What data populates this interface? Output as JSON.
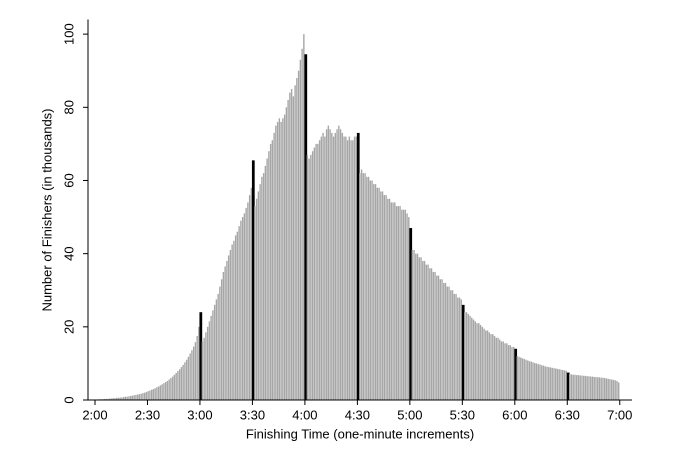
{
  "chart_data": {
    "type": "histogram",
    "xlabel": "Finishing Time (one-minute increments)",
    "ylabel": "Number of Finishers (in thousands)",
    "color": "#a6a6a6",
    "highlight_color": "#000000",
    "highlight_x": [
      180,
      210,
      240,
      270,
      300,
      330,
      360,
      390
    ],
    "xlim": [
      116,
      427
    ],
    "ylim": [
      0,
      104
    ],
    "xticks": [
      {
        "value": 120,
        "label": "2:00"
      },
      {
        "value": 150,
        "label": "2:30"
      },
      {
        "value": 180,
        "label": "3:00"
      },
      {
        "value": 210,
        "label": "3:30"
      },
      {
        "value": 240,
        "label": "4:00"
      },
      {
        "value": 270,
        "label": "4:30"
      },
      {
        "value": 300,
        "label": "5:00"
      },
      {
        "value": 330,
        "label": "5:30"
      },
      {
        "value": 360,
        "label": "6:00"
      },
      {
        "value": 390,
        "label": "6:30"
      },
      {
        "value": 420,
        "label": "7:00"
      }
    ],
    "yticks": [
      0,
      20,
      40,
      60,
      80,
      100
    ],
    "bins": [
      120,
      121,
      122,
      123,
      124,
      125,
      126,
      127,
      128,
      129,
      130,
      131,
      132,
      133,
      134,
      135,
      136,
      137,
      138,
      139,
      140,
      141,
      142,
      143,
      144,
      145,
      146,
      147,
      148,
      149,
      150,
      151,
      152,
      153,
      154,
      155,
      156,
      157,
      158,
      159,
      160,
      161,
      162,
      163,
      164,
      165,
      166,
      167,
      168,
      169,
      170,
      171,
      172,
      173,
      174,
      175,
      176,
      177,
      178,
      179,
      180,
      181,
      182,
      183,
      184,
      185,
      186,
      187,
      188,
      189,
      190,
      191,
      192,
      193,
      194,
      195,
      196,
      197,
      198,
      199,
      200,
      201,
      202,
      203,
      204,
      205,
      206,
      207,
      208,
      209,
      210,
      211,
      212,
      213,
      214,
      215,
      216,
      217,
      218,
      219,
      220,
      221,
      222,
      223,
      224,
      225,
      226,
      227,
      228,
      229,
      230,
      231,
      232,
      233,
      234,
      235,
      236,
      237,
      238,
      239,
      240,
      241,
      242,
      243,
      244,
      245,
      246,
      247,
      248,
      249,
      250,
      251,
      252,
      253,
      254,
      255,
      256,
      257,
      258,
      259,
      260,
      261,
      262,
      263,
      264,
      265,
      266,
      267,
      268,
      269,
      270,
      271,
      272,
      273,
      274,
      275,
      276,
      277,
      278,
      279,
      280,
      281,
      282,
      283,
      284,
      285,
      286,
      287,
      288,
      289,
      290,
      291,
      292,
      293,
      294,
      295,
      296,
      297,
      298,
      299,
      300,
      301,
      302,
      303,
      304,
      305,
      306,
      307,
      308,
      309,
      310,
      311,
      312,
      313,
      314,
      315,
      316,
      317,
      318,
      319,
      320,
      321,
      322,
      323,
      324,
      325,
      326,
      327,
      328,
      329,
      330,
      331,
      332,
      333,
      334,
      335,
      336,
      337,
      338,
      339,
      340,
      341,
      342,
      343,
      344,
      345,
      346,
      347,
      348,
      349,
      350,
      351,
      352,
      353,
      354,
      355,
      356,
      357,
      358,
      359,
      360,
      361,
      362,
      363,
      364,
      365,
      366,
      367,
      368,
      369,
      370,
      371,
      372,
      373,
      374,
      375,
      376,
      377,
      378,
      379,
      380,
      381,
      382,
      383,
      384,
      385,
      386,
      387,
      388,
      389,
      390,
      391,
      392,
      393,
      394,
      395,
      396,
      397,
      398,
      399,
      400,
      401,
      402,
      403,
      404,
      405,
      406,
      407,
      408,
      409,
      410,
      411,
      412,
      413,
      414,
      415,
      416,
      417,
      418,
      419,
      420
    ],
    "values": [
      0.1,
      0.1,
      0.2,
      0.2,
      0.2,
      0.3,
      0.3,
      0.3,
      0.4,
      0.4,
      0.5,
      0.5,
      0.6,
      0.6,
      0.7,
      0.7,
      0.8,
      0.9,
      0.9,
      1.0,
      1.1,
      1.2,
      1.3,
      1.4,
      1.5,
      1.6,
      1.7,
      1.9,
      2.0,
      2.2,
      2.4,
      2.6,
      2.8,
      3.0,
      3.2,
      3.5,
      3.7,
      4.0,
      4.3,
      4.6,
      4.9,
      5.2,
      5.6,
      6.0,
      6.4,
      6.9,
      7.4,
      7.9,
      8.4,
      9.0,
      9.6,
      10.3,
      11.0,
      11.8,
      12.7,
      13.6,
      14.6,
      15.8,
      17.5,
      20.0,
      24.0,
      16.0,
      17.0,
      18.5,
      20,
      21.5,
      23,
      24.5,
      26,
      27.5,
      29,
      31,
      33,
      35,
      36.5,
      38,
      39.5,
      41,
      42.5,
      43.5,
      45,
      46,
      47.5,
      49,
      50,
      51,
      52.5,
      54,
      56,
      58,
      65.5,
      53,
      55,
      57,
      59,
      61,
      62,
      64,
      66,
      68,
      70,
      71,
      73,
      75,
      76,
      77,
      76,
      77,
      78,
      80,
      82,
      84,
      85,
      83,
      86,
      88,
      90,
      93,
      96,
      100,
      94.5,
      67,
      66,
      67,
      68,
      69,
      70,
      70,
      71,
      72,
      73,
      72,
      74,
      75,
      74,
      73,
      72,
      73,
      74,
      75,
      74,
      73,
      72,
      72,
      71,
      72,
      71,
      71,
      72,
      72,
      73,
      62,
      63,
      62,
      62,
      61,
      61,
      60,
      60,
      59,
      59,
      58,
      58,
      57,
      57,
      56,
      56,
      55,
      55,
      54,
      54,
      54,
      53,
      53,
      53,
      52,
      52,
      52,
      51,
      50,
      47,
      41,
      41,
      40,
      40,
      39,
      39,
      38,
      38,
      37,
      37,
      36,
      36,
      35,
      35,
      34,
      34,
      33,
      33,
      32,
      32,
      31,
      31,
      30,
      30,
      29,
      29,
      28,
      28,
      27.5,
      26,
      24,
      24,
      23.5,
      23,
      22.5,
      22,
      21.5,
      21,
      21,
      20.5,
      20,
      19.5,
      19,
      19,
      18.5,
      18,
      18,
      17.5,
      17,
      17,
      16.5,
      16,
      16,
      15.5,
      15.5,
      15,
      15,
      14.5,
      14.5,
      14,
      12,
      11.8,
      11.6,
      11.4,
      11.2,
      11,
      10.8,
      10.6,
      10.5,
      10.3,
      10.1,
      10,
      9.8,
      9.7,
      9.5,
      9.4,
      9.2,
      9.1,
      9,
      8.9,
      8.8,
      8.7,
      8.6,
      8.5,
      8.4,
      8.3,
      8.2,
      8.1,
      8,
      7.5,
      7,
      7,
      6.9,
      6.9,
      6.8,
      6.8,
      6.7,
      6.7,
      6.6,
      6.6,
      6.5,
      6.5,
      6.4,
      6.4,
      6.3,
      6.3,
      6.2,
      6.2,
      6.1,
      6.1,
      6,
      5.9,
      5.8,
      5.7,
      5.6,
      5.5,
      5.4,
      5.2,
      4.8
    ]
  }
}
